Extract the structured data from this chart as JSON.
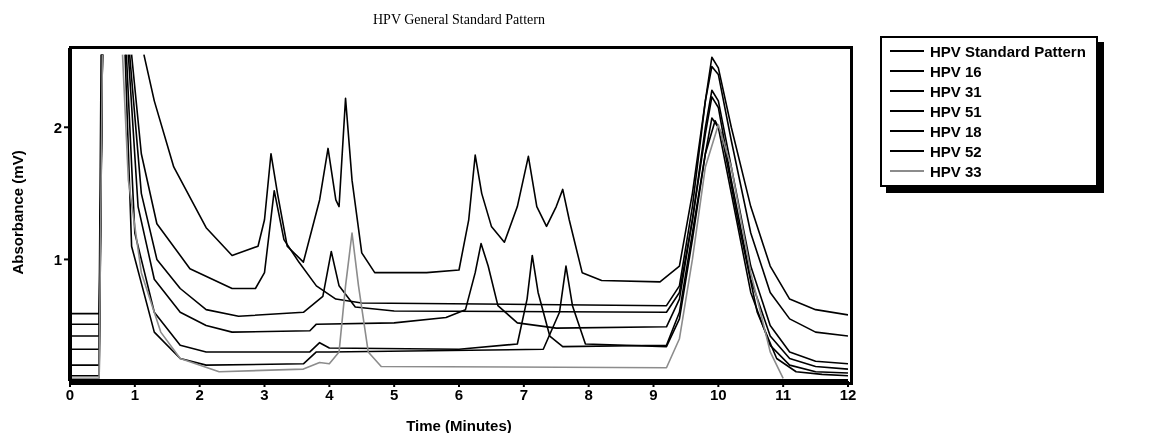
{
  "chart_data": {
    "type": "line",
    "title": "HPV General Standard Pattern",
    "xlabel": "Time (Minutes)",
    "ylabel": "Absorbance (mV)",
    "xlim": [
      0,
      12
    ],
    "xticks": [
      0,
      1,
      2,
      3,
      4,
      5,
      6,
      7,
      8,
      9,
      10,
      11,
      12
    ],
    "ylim": [
      0.08,
      2.6
    ],
    "yticks": [
      1,
      2
    ],
    "grid": false,
    "legend": "right",
    "marker": "none",
    "line_style": "solid",
    "series": [
      {
        "name": "HPV Standard Pattern",
        "color": "#000000",
        "x": [
          0,
          0.45,
          0.48,
          0.8,
          1.14,
          1.3,
          1.6,
          2.1,
          2.5,
          2.9,
          3.0,
          3.1,
          3.2,
          3.35,
          3.6,
          3.85,
          3.98,
          4.1,
          4.15,
          4.25,
          4.35,
          4.5,
          4.7,
          5.5,
          6.0,
          6.15,
          6.25,
          6.35,
          6.5,
          6.7,
          6.9,
          7.07,
          7.2,
          7.35,
          7.5,
          7.6,
          7.7,
          7.9,
          8.2,
          9.1,
          9.4,
          9.6,
          9.8,
          9.9,
          10.0,
          10.2,
          10.5,
          10.8,
          11.1,
          11.5,
          12
        ],
        "values": [
          0.59,
          0.59,
          2.55,
          null,
          2.55,
          2.2,
          1.7,
          1.24,
          1.03,
          1.1,
          1.3,
          1.8,
          1.5,
          1.1,
          0.98,
          1.45,
          1.84,
          1.45,
          1.4,
          2.22,
          1.6,
          1.05,
          0.9,
          0.9,
          0.92,
          1.3,
          1.79,
          1.5,
          1.25,
          1.13,
          1.4,
          1.78,
          1.4,
          1.25,
          1.4,
          1.53,
          1.3,
          0.9,
          0.84,
          0.83,
          0.95,
          1.5,
          2.2,
          2.53,
          2.45,
          2.0,
          1.4,
          0.95,
          0.7,
          0.62,
          0.58
        ]
      },
      {
        "name": "HPV 16",
        "color": "#000000",
        "x": [
          0,
          0.45,
          0.5,
          0.8,
          0.95,
          1.1,
          1.34,
          1.85,
          2.5,
          2.86,
          3.0,
          3.15,
          3.3,
          3.53,
          3.8,
          4.1,
          4.5,
          9.2,
          9.4,
          9.6,
          9.8,
          9.9,
          10.0,
          10.2,
          10.5,
          10.8,
          11.1,
          11.5,
          12
        ],
        "values": [
          0.51,
          0.51,
          2.55,
          null,
          2.55,
          1.8,
          1.27,
          0.93,
          0.78,
          0.78,
          0.9,
          1.52,
          1.15,
          0.98,
          0.8,
          0.7,
          0.67,
          0.65,
          0.8,
          1.4,
          2.2,
          2.46,
          2.4,
          1.9,
          1.2,
          0.75,
          0.55,
          0.45,
          0.42
        ]
      },
      {
        "name": "HPV 31",
        "color": "#000000",
        "x": [
          0,
          0.45,
          0.5,
          0.8,
          0.92,
          1.1,
          1.34,
          1.7,
          2.1,
          2.6,
          3.6,
          3.9,
          4.03,
          4.15,
          4.4,
          5,
          9.2,
          9.4,
          9.6,
          9.8,
          9.9,
          10.0,
          10.2,
          10.5,
          10.8,
          11.1,
          11.5,
          12
        ],
        "values": [
          0.42,
          0.42,
          2.55,
          null,
          2.55,
          1.5,
          1.0,
          0.78,
          0.62,
          0.57,
          0.6,
          0.72,
          1.06,
          0.8,
          0.64,
          0.61,
          0.6,
          0.75,
          1.3,
          2.0,
          2.28,
          2.2,
          1.7,
          0.95,
          0.5,
          0.3,
          0.23,
          0.21
        ]
      },
      {
        "name": "HPV 51",
        "color": "#000000",
        "x": [
          0,
          0.45,
          0.5,
          0.8,
          0.9,
          1.05,
          1.3,
          1.7,
          2.1,
          2.5,
          3.7,
          3.8,
          5.0,
          5.8,
          6.1,
          6.25,
          6.34,
          6.45,
          6.6,
          6.9,
          7.5,
          9.2,
          9.4,
          9.6,
          9.8,
          9.9,
          10.0,
          10.2,
          10.5,
          10.8,
          11.1,
          11.5,
          12
        ],
        "values": [
          0.32,
          0.32,
          2.55,
          null,
          2.55,
          1.4,
          0.85,
          0.6,
          0.5,
          0.45,
          0.46,
          0.51,
          0.52,
          0.56,
          0.62,
          0.9,
          1.12,
          0.95,
          0.65,
          0.52,
          0.48,
          0.49,
          0.7,
          1.3,
          1.95,
          2.23,
          2.15,
          1.6,
          0.85,
          0.42,
          0.25,
          0.19,
          0.17
        ]
      },
      {
        "name": "HPV 18",
        "color": "#000000",
        "x": [
          0,
          0.45,
          0.5,
          0.8,
          0.87,
          1.0,
          1.3,
          1.7,
          2.1,
          3.7,
          3.85,
          4.0,
          6.0,
          6.9,
          7.05,
          7.13,
          7.22,
          7.4,
          7.6,
          9.2,
          9.4,
          9.6,
          9.8,
          9.9,
          10.0,
          10.2,
          10.5,
          10.8,
          11.1,
          11.5,
          12
        ],
        "values": [
          0.2,
          0.2,
          2.55,
          null,
          2.55,
          1.2,
          0.6,
          0.35,
          0.3,
          0.3,
          0.37,
          0.33,
          0.32,
          0.36,
          0.7,
          1.03,
          0.75,
          0.42,
          0.34,
          0.35,
          0.6,
          1.2,
          1.8,
          2.07,
          2.0,
          1.5,
          0.75,
          0.35,
          0.2,
          0.15,
          0.14
        ]
      },
      {
        "name": "HPV 52",
        "color": "#000000",
        "x": [
          0,
          0.45,
          0.5,
          0.8,
          0.85,
          0.95,
          1.3,
          1.7,
          2.1,
          3.6,
          3.8,
          4.0,
          7.3,
          7.55,
          7.65,
          7.75,
          7.95,
          9.2,
          9.4,
          9.6,
          9.8,
          9.95,
          10.05,
          10.3,
          10.6,
          10.9,
          11.2,
          11.6,
          12
        ],
        "values": [
          0.12,
          0.12,
          2.55,
          null,
          2.55,
          1.1,
          0.45,
          0.25,
          0.2,
          0.21,
          0.3,
          0.3,
          0.32,
          0.6,
          0.95,
          0.65,
          0.36,
          0.34,
          0.55,
          1.15,
          1.8,
          2.05,
          1.95,
          1.3,
          0.6,
          0.25,
          0.15,
          0.13,
          0.12
        ]
      },
      {
        "name": "HPV 33",
        "color": "#8c8c8c",
        "x": [
          0,
          0.45,
          0.5,
          0.7,
          0.81,
          0.9,
          1.1,
          1.4,
          1.7,
          2.3,
          3.6,
          3.85,
          4.0,
          4.15,
          4.25,
          4.35,
          4.45,
          4.6,
          4.8,
          9.2,
          9.4,
          9.6,
          9.8,
          10.0,
          10.2,
          10.5,
          10.8,
          11.0
        ],
        "values": [
          0.1,
          0.1,
          2.55,
          null,
          2.55,
          1.6,
          0.9,
          0.45,
          0.25,
          0.15,
          0.17,
          0.22,
          0.21,
          0.3,
          0.8,
          1.2,
          0.8,
          0.3,
          0.19,
          0.18,
          0.4,
          1.0,
          1.7,
          2.02,
          1.7,
          0.9,
          0.3,
          0.1
        ]
      }
    ]
  }
}
